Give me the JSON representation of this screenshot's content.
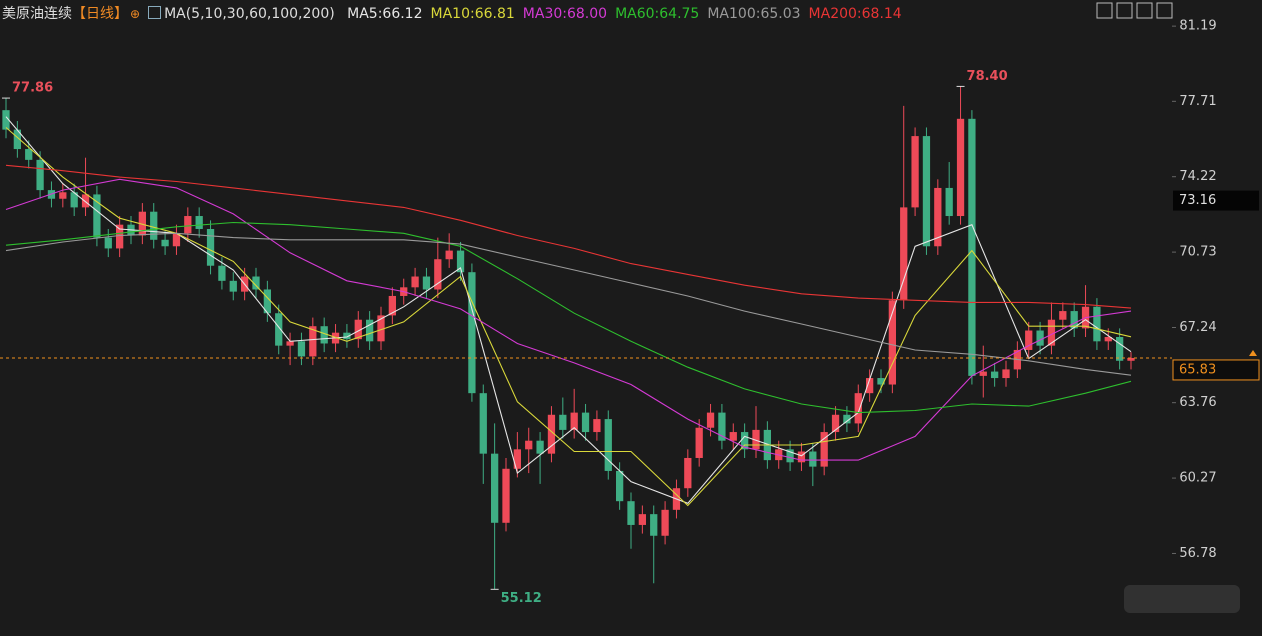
{
  "chart_data": {
    "type": "candlestick",
    "title": "美原油连续",
    "period": "【日线】",
    "indicator": "MA(5,10,30,60,100,200)",
    "ylim": [
      53.7,
      82.4
    ],
    "yticks": [
      81.19,
      77.71,
      74.22,
      70.73,
      67.24,
      63.76,
      60.27,
      56.78
    ],
    "up_color": "#ee4a58",
    "down_color": "#3fae84",
    "open": [
      77.3,
      76.4,
      75.5,
      75.0,
      73.6,
      73.2,
      73.5,
      72.8,
      73.4,
      71.4,
      70.9,
      72.0,
      71.5,
      72.6,
      71.3,
      71.0,
      71.6,
      72.4,
      71.8,
      70.1,
      69.4,
      68.9,
      69.6,
      69.0,
      67.9,
      66.4,
      66.6,
      65.9,
      67.3,
      66.5,
      67.0,
      66.7,
      67.6,
      66.6,
      67.8,
      68.7,
      69.1,
      69.6,
      69.0,
      70.4,
      70.8,
      69.8,
      64.2,
      61.4,
      58.2,
      60.7,
      61.6,
      62.0,
      61.4,
      63.2,
      62.5,
      63.3,
      62.4,
      63.0,
      60.6,
      59.2,
      58.1,
      58.6,
      57.6,
      58.8,
      59.8,
      61.2,
      62.6,
      63.3,
      62.0,
      62.4,
      61.6,
      62.5,
      61.1,
      61.6,
      61.0,
      61.5,
      60.8,
      62.4,
      63.2,
      62.8,
      64.2,
      64.9,
      64.6,
      68.5,
      72.8,
      76.1,
      71.0,
      73.7,
      72.4,
      76.9,
      65.0,
      65.2,
      64.9,
      65.3,
      66.2,
      67.1,
      66.4,
      67.6,
      68.0,
      67.2,
      68.2,
      66.6,
      66.8,
      65.7
    ],
    "high": [
      77.86,
      76.8,
      75.9,
      75.4,
      74.0,
      73.9,
      73.9,
      75.1,
      73.8,
      71.8,
      72.4,
      72.4,
      73.0,
      73.0,
      71.7,
      72.0,
      72.8,
      72.8,
      72.2,
      70.5,
      69.8,
      70.0,
      70.0,
      69.4,
      68.3,
      67.0,
      67.0,
      67.7,
      67.7,
      67.4,
      67.4,
      68.0,
      68.0,
      68.2,
      69.1,
      69.5,
      70.0,
      70.0,
      71.4,
      71.6,
      71.2,
      70.2,
      64.6,
      62.8,
      61.2,
      62.4,
      62.6,
      62.4,
      63.6,
      64.0,
      64.4,
      63.7,
      63.4,
      63.4,
      61.0,
      59.6,
      59.0,
      59.0,
      59.2,
      60.2,
      61.6,
      63.0,
      63.7,
      63.7,
      62.8,
      62.8,
      63.6,
      62.9,
      62.0,
      62.0,
      61.9,
      61.9,
      62.8,
      63.6,
      63.6,
      64.6,
      65.3,
      65.3,
      68.9,
      77.5,
      76.5,
      76.5,
      74.1,
      74.9,
      78.4,
      77.3,
      66.4,
      65.6,
      65.7,
      66.6,
      67.5,
      67.5,
      68.4,
      68.4,
      68.4,
      69.2,
      68.6,
      67.2,
      67.2,
      66.1
    ],
    "low": [
      76.0,
      75.1,
      74.6,
      73.2,
      72.8,
      72.8,
      72.4,
      72.4,
      71.0,
      70.5,
      70.5,
      71.1,
      71.1,
      70.9,
      70.6,
      70.6,
      71.2,
      71.4,
      69.7,
      69.0,
      68.5,
      68.5,
      68.6,
      67.5,
      66.0,
      65.5,
      65.5,
      65.5,
      66.1,
      66.1,
      66.3,
      66.3,
      66.2,
      66.2,
      67.4,
      68.3,
      68.7,
      68.6,
      68.6,
      70.0,
      69.4,
      63.8,
      60.0,
      55.12,
      57.8,
      60.3,
      60.5,
      60.0,
      61.0,
      62.1,
      62.1,
      62.0,
      62.0,
      60.2,
      58.8,
      57.0,
      57.7,
      55.4,
      57.2,
      58.4,
      59.4,
      60.8,
      62.2,
      61.6,
      61.6,
      61.2,
      61.2,
      60.7,
      60.7,
      60.6,
      60.6,
      59.9,
      60.4,
      62.0,
      62.4,
      62.4,
      63.8,
      64.2,
      64.2,
      68.1,
      72.4,
      70.6,
      70.6,
      72.0,
      72.0,
      64.6,
      64.0,
      64.5,
      64.5,
      64.9,
      65.8,
      66.0,
      66.0,
      67.2,
      66.8,
      66.8,
      66.2,
      66.2,
      65.3,
      65.3
    ],
    "close": [
      76.4,
      75.5,
      75.0,
      73.6,
      73.2,
      73.5,
      72.8,
      73.4,
      71.4,
      70.9,
      72.0,
      71.5,
      72.6,
      71.3,
      71.0,
      71.6,
      72.4,
      71.8,
      70.1,
      69.4,
      68.9,
      69.6,
      69.0,
      67.9,
      66.4,
      66.6,
      65.9,
      67.3,
      66.5,
      67.0,
      66.7,
      67.6,
      66.6,
      67.8,
      68.7,
      69.1,
      69.6,
      69.0,
      70.4,
      70.8,
      69.8,
      64.2,
      61.4,
      58.2,
      60.7,
      61.6,
      62.0,
      61.4,
      63.2,
      62.5,
      63.3,
      62.4,
      63.0,
      60.6,
      59.2,
      58.1,
      58.6,
      57.6,
      58.8,
      59.8,
      61.2,
      62.6,
      63.3,
      62.0,
      62.4,
      61.6,
      62.5,
      61.1,
      61.6,
      61.0,
      61.5,
      60.8,
      62.4,
      63.2,
      62.8,
      64.2,
      64.9,
      64.6,
      68.5,
      72.8,
      76.1,
      71.0,
      73.7,
      72.4,
      76.9,
      65.0,
      65.2,
      64.9,
      65.3,
      66.2,
      67.1,
      66.4,
      67.6,
      68.0,
      67.2,
      68.2,
      66.6,
      66.8,
      65.7,
      65.83
    ],
    "series": [
      {
        "name": "MA5:66.12",
        "color": "#e6e6e6",
        "x": [
          0,
          5,
          10,
          15,
          20,
          25,
          30,
          35,
          40,
          45,
          50,
          55,
          60,
          65,
          70,
          75,
          80,
          85,
          90,
          95,
          99
        ],
        "values": [
          77.0,
          73.9,
          71.8,
          71.6,
          69.9,
          66.6,
          66.8,
          68.2,
          70.0,
          60.5,
          62.6,
          60.1,
          59.1,
          62.2,
          61.3,
          63.3,
          71.0,
          72.0,
          65.8,
          67.6,
          66.12
        ]
      },
      {
        "name": "MA10:66.81",
        "color": "#d9d83a",
        "x": [
          0,
          5,
          10,
          15,
          20,
          25,
          30,
          35,
          40,
          45,
          50,
          55,
          60,
          65,
          70,
          75,
          80,
          85,
          90,
          95,
          99
        ],
        "values": [
          76.5,
          74.2,
          72.3,
          71.6,
          70.3,
          67.5,
          66.6,
          67.5,
          69.6,
          63.8,
          61.5,
          61.5,
          59.0,
          61.8,
          61.8,
          62.2,
          67.8,
          70.8,
          67.3,
          67.3,
          66.81
        ]
      },
      {
        "name": "MA30:68.00",
        "color": "#d43ad4",
        "x": [
          0,
          5,
          10,
          15,
          20,
          25,
          30,
          35,
          40,
          45,
          50,
          55,
          60,
          65,
          70,
          75,
          80,
          85,
          90,
          95,
          99
        ],
        "values": [
          72.7,
          73.6,
          74.1,
          73.7,
          72.5,
          70.7,
          69.4,
          68.9,
          68.1,
          66.5,
          65.6,
          64.6,
          63.0,
          61.7,
          61.1,
          61.1,
          62.2,
          65.0,
          66.4,
          67.7,
          68.0
        ]
      },
      {
        "name": "MA60:64.75",
        "color": "#2ebf2e",
        "x": [
          0,
          5,
          10,
          15,
          20,
          25,
          30,
          35,
          40,
          45,
          50,
          55,
          60,
          65,
          70,
          75,
          80,
          85,
          90,
          95,
          99
        ],
        "values": [
          71.05,
          71.3,
          71.6,
          71.9,
          72.1,
          72.0,
          71.8,
          71.6,
          71.0,
          69.5,
          67.9,
          66.6,
          65.4,
          64.4,
          63.7,
          63.3,
          63.4,
          63.7,
          63.6,
          64.2,
          64.75
        ]
      },
      {
        "name": "MA100:65.03",
        "color": "#9a9a9a",
        "x": [
          0,
          5,
          10,
          15,
          20,
          25,
          30,
          35,
          40,
          45,
          50,
          55,
          60,
          65,
          70,
          75,
          80,
          85,
          90,
          95,
          99
        ],
        "values": [
          70.8,
          71.2,
          71.5,
          71.6,
          71.4,
          71.3,
          71.3,
          71.3,
          71.1,
          70.5,
          69.9,
          69.3,
          68.7,
          68.0,
          67.4,
          66.8,
          66.2,
          66.0,
          65.7,
          65.3,
          65.03
        ]
      },
      {
        "name": "MA200:68.14",
        "color": "#e83535",
        "x": [
          0,
          5,
          10,
          15,
          20,
          25,
          30,
          35,
          40,
          45,
          50,
          55,
          60,
          65,
          70,
          75,
          80,
          85,
          90,
          95,
          99
        ],
        "values": [
          74.75,
          74.5,
          74.2,
          74.0,
          73.7,
          73.4,
          73.1,
          72.8,
          72.2,
          71.5,
          70.9,
          70.2,
          69.7,
          69.2,
          68.8,
          68.6,
          68.5,
          68.4,
          68.4,
          68.3,
          68.14
        ]
      }
    ],
    "annotations": [
      {
        "value": 77.86,
        "label": "77.86"
      },
      {
        "value": 78.4,
        "label": "78.40"
      },
      {
        "value": 55.12,
        "label": "55.12"
      }
    ],
    "last_price": 65.83,
    "cursor_price": 73.16
  }
}
